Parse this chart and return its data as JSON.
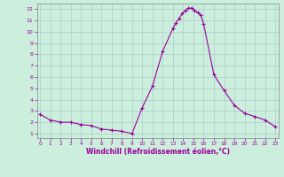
{
  "x": [
    0,
    1,
    2,
    3,
    4,
    5,
    6,
    7,
    8,
    9,
    10,
    11,
    12,
    13,
    13.3,
    13.6,
    13.9,
    14.2,
    14.5,
    14.8,
    15.1,
    15.4,
    15.7,
    16,
    17,
    18,
    19,
    20,
    21,
    22,
    23
  ],
  "y": [
    2.7,
    2.2,
    2.0,
    2.0,
    1.8,
    1.7,
    1.4,
    1.3,
    1.2,
    1.0,
    3.3,
    5.2,
    8.3,
    10.3,
    10.8,
    11.2,
    11.6,
    11.9,
    12.1,
    12.1,
    11.9,
    11.7,
    11.5,
    10.7,
    6.2,
    4.8,
    3.5,
    2.8,
    2.5,
    2.2,
    1.6
  ],
  "line_color": "#990099",
  "marker": "+",
  "markersize": 3,
  "linewidth": 0.8,
  "bg_color": "#cceedd",
  "grid_color": "#aacccc",
  "xlabel": "Windchill (Refroidissement éolien,°C)",
  "ylabel_ticks": [
    1,
    2,
    3,
    4,
    5,
    6,
    7,
    8,
    9,
    10,
    11,
    12
  ],
  "xlabel_ticks": [
    0,
    1,
    2,
    3,
    4,
    5,
    6,
    7,
    8,
    9,
    10,
    11,
    12,
    13,
    14,
    15,
    16,
    17,
    18,
    19,
    20,
    21,
    22,
    23
  ],
  "xlim": [
    -0.3,
    23.3
  ],
  "ylim": [
    0.6,
    12.5
  ]
}
